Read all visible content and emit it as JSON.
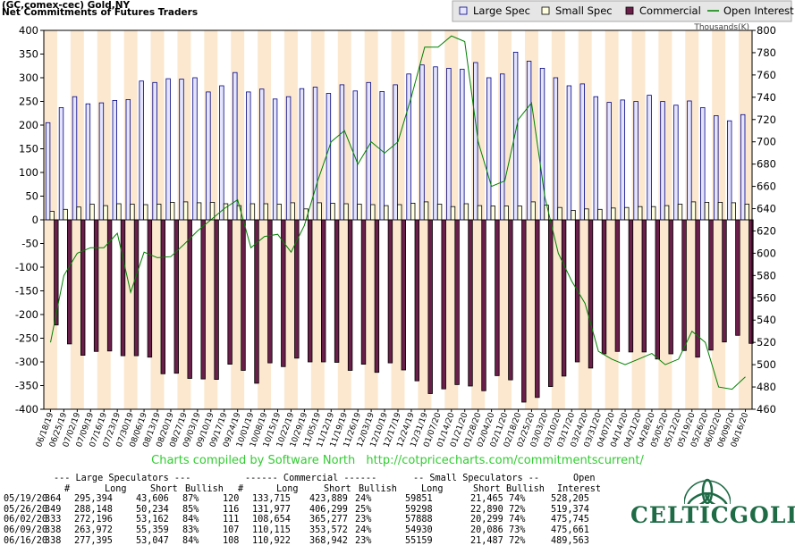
{
  "header": {
    "line1": "(GC,comex-cec) Gold,NY",
    "line2": "Net Commitments of Futures Traders"
  },
  "chart_data": {
    "type": "bar",
    "categories": [
      "06/18/19",
      "06/25/19",
      "07/02/19",
      "07/09/19",
      "07/16/19",
      "07/23/19",
      "07/30/19",
      "08/06/19",
      "08/13/19",
      "08/20/19",
      "08/27/19",
      "09/03/19",
      "09/10/19",
      "09/17/19",
      "09/24/19",
      "10/01/19",
      "10/08/19",
      "10/15/19",
      "10/22/19",
      "10/29/19",
      "11/05/19",
      "11/12/19",
      "11/19/19",
      "11/26/19",
      "12/03/19",
      "12/10/19",
      "12/17/19",
      "12/24/19",
      "12/31/19",
      "01/07/20",
      "01/14/20",
      "01/21/20",
      "01/28/20",
      "02/04/20",
      "02/11/20",
      "02/18/20",
      "02/25/20",
      "03/03/20",
      "03/10/20",
      "03/17/20",
      "03/24/20",
      "03/31/20",
      "04/07/20",
      "04/14/20",
      "04/21/20",
      "04/28/20",
      "05/05/20",
      "05/12/20",
      "05/19/20",
      "05/26/20",
      "06/02/20",
      "06/09/20",
      "06/16/20"
    ],
    "x_tick_labels": [
      "06/18/19",
      "06/25/19",
      "07/02/19",
      "07/09/19",
      "07/16/19",
      "07/23/19",
      "07/30/19",
      "08/06/19",
      "08/13/19",
      "08/20/19",
      "08/27/19",
      "09/03/19",
      "09/10/19",
      "09/17/19",
      "09/24/19",
      "10/01/19",
      "10/08/19",
      "10/15/19",
      "10/22/19",
      "10/29/19",
      "11/05/19",
      "11/12/19",
      "11/19/19",
      "11/26/19",
      "12/03/19",
      "12/10/19",
      "12/17/19",
      "12/24/19",
      "12/31/19",
      "01/07/20",
      "01/14/20",
      "01/21/20",
      "01/28/20",
      "02/04/20",
      "02/11/20",
      "02/18/20",
      "02/25/20",
      "03/03/20",
      "03/10/20",
      "03/17/20",
      "03/24/20",
      "03/31/20",
      "04/07/20",
      "04/14/20",
      "04/21/20",
      "04/28/20",
      "05/05/20",
      "05/12/20",
      "05/19/20",
      "05/26/20",
      "06/02/20",
      "06/09/20",
      "06/16/20"
    ],
    "series": [
      {
        "name": "Large Spec",
        "color": "#e4e4ff",
        "stroke": "#000080",
        "values": [
          205,
          237,
          260,
          245,
          247,
          252,
          254,
          293,
          290,
          298,
          297,
          300,
          270,
          283,
          311,
          270,
          276,
          255,
          260,
          277,
          280,
          267,
          285,
          272,
          290,
          271,
          285,
          308,
          327,
          323,
          320,
          318,
          332,
          300,
          308,
          354,
          335,
          320,
          300,
          283,
          287,
          260,
          248,
          253,
          250,
          263,
          250,
          242,
          251,
          237,
          220,
          209,
          222
        ]
      },
      {
        "name": "Small Spec",
        "color": "#ffffe0",
        "stroke": "#000000",
        "values": [
          18,
          22,
          27,
          33,
          30,
          34,
          33,
          32,
          33,
          37,
          38,
          36,
          37,
          34,
          30,
          34,
          34,
          33,
          36,
          23,
          36,
          35,
          34,
          33,
          32,
          30,
          32,
          35,
          38,
          33,
          28,
          34,
          30,
          29,
          29,
          29,
          38,
          31,
          26,
          20,
          23,
          22,
          25,
          26,
          28,
          28,
          30,
          33,
          38,
          37,
          37,
          36,
          33
        ]
      },
      {
        "name": "Commercial",
        "color": "#6a1f4a",
        "stroke": "#000000",
        "values": [
          -222,
          -262,
          -286,
          -278,
          -277,
          -287,
          -287,
          -290,
          -325,
          -324,
          -335,
          -336,
          -337,
          -305,
          -318,
          -345,
          -302,
          -310,
          -292,
          -300,
          -300,
          -301,
          -318,
          -305,
          -322,
          -302,
          -317,
          -340,
          -367,
          -357,
          -348,
          -351,
          -361,
          -329,
          -338,
          -385,
          -375,
          -352,
          -330,
          -300,
          -313,
          -283,
          -278,
          -279,
          -279,
          -294,
          -283,
          -276,
          -290,
          -275,
          -258,
          -244,
          -261
        ]
      },
      {
        "name": "Open Interest",
        "color": "#008000",
        "axis": "right",
        "values": [
          520,
          580,
          600,
          605,
          605,
          618,
          565,
          601,
          596,
          597,
          608,
          620,
          630,
          640,
          648,
          605,
          615,
          617,
          601,
          625,
          665,
          700,
          710,
          680,
          700,
          690,
          700,
          740,
          785,
          785,
          795,
          790,
          700,
          660,
          665,
          720,
          735,
          650,
          600,
          575,
          555,
          512,
          505,
          500,
          505,
          510,
          500,
          505,
          530,
          520,
          480,
          478,
          489
        ]
      }
    ],
    "ylim": [
      -400,
      400
    ],
    "yticks": [
      400,
      350,
      300,
      250,
      200,
      150,
      100,
      50,
      0,
      -50,
      -100,
      -150,
      -200,
      -250,
      -300,
      -350,
      -400
    ],
    "y2lim": [
      460,
      800
    ],
    "y2ticks": [
      800,
      780,
      760,
      740,
      720,
      700,
      680,
      660,
      640,
      620,
      600,
      580,
      560,
      540,
      520,
      500,
      480,
      460
    ],
    "y2_unit_label": "Thousands(K)",
    "legend_position": "top-right",
    "grid": "alternating vertical bands"
  },
  "credit": {
    "text": "Charts compiled by Software North",
    "url": "http://cotpricecharts.com/commitmentscurrent/"
  },
  "table": {
    "group_header": {
      "large": "--- Large Speculators ---",
      "commercial": "------ Commercial ------",
      "small": "-- Small Speculators --",
      "open": "Open"
    },
    "headers": {
      "count": "#",
      "long": "Long",
      "short": "Short",
      "bullish": "Bullish",
      "c_count": "#",
      "c_long": "Long",
      "c_short": "Short",
      "c_bullish": "Bullish",
      "s_long": "Long",
      "s_short": "Short",
      "s_bullish": "Bullish",
      "oi": "Interest"
    },
    "rows": [
      {
        "date": "05/19/20",
        "count": "364",
        "long": "295,394",
        "short": "43,606",
        "bullish": "87%",
        "c_count": "120",
        "c_long": "133,715",
        "c_short": "423,889",
        "c_bullish": "24%",
        "s_long": "59851",
        "s_short": "21,465",
        "s_bullish": "74%",
        "oi": "528,205"
      },
      {
        "date": "05/26/20",
        "count": "349",
        "long": "288,148",
        "short": "50,234",
        "bullish": "85%",
        "c_count": "116",
        "c_long": "131,977",
        "c_short": "406,299",
        "c_bullish": "25%",
        "s_long": "59298",
        "s_short": "22,890",
        "s_bullish": "72%",
        "oi": "519,374"
      },
      {
        "date": "06/02/20",
        "count": "333",
        "long": "272,196",
        "short": "53,162",
        "bullish": "84%",
        "c_count": "111",
        "c_long": "108,654",
        "c_short": "365,277",
        "c_bullish": "23%",
        "s_long": "57888",
        "s_short": "20,299",
        "s_bullish": "74%",
        "oi": "475,745"
      },
      {
        "date": "06/09/20",
        "count": "338",
        "long": "263,972",
        "short": "55,359",
        "bullish": "83%",
        "c_count": "107",
        "c_long": "110,115",
        "c_short": "353,572",
        "c_bullish": "24%",
        "s_long": "54930",
        "s_short": "20,086",
        "s_bullish": "73%",
        "oi": "475,661"
      },
      {
        "date": "06/16/20",
        "count": "338",
        "long": "277,395",
        "short": "53,047",
        "bullish": "84%",
        "c_count": "108",
        "c_long": "110,922",
        "c_short": "368,942",
        "c_bullish": "23%",
        "s_long": "55159",
        "s_short": "21,487",
        "s_bullish": "72%",
        "oi": "489,563"
      }
    ]
  },
  "logo": {
    "name": "CELTICGOLD",
    "colors": {
      "primary": "#1e6b46"
    }
  }
}
